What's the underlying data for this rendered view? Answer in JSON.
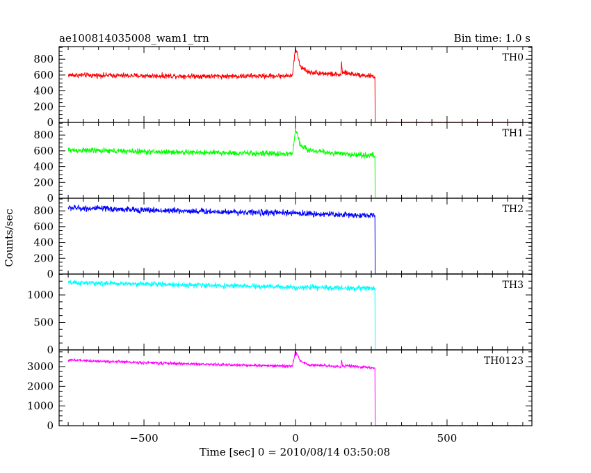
{
  "chart_data": {
    "type": "line",
    "title": "ae100814035008_wam1_trn",
    "subtitle": "Bin time: 1.0 s",
    "xlabel": "Time [sec] 0 = 2010/08/14 03:50:08",
    "ylabel": "Counts/sec",
    "xlim": [
      -780,
      780
    ],
    "x_ticks": [
      -500,
      0,
      500
    ],
    "grid": false,
    "data_start": -750,
    "data_end": 750,
    "cutoff": 262,
    "series": [
      {
        "name": "TH0",
        "color": "#ff0000",
        "ylim": [
          0,
          960
        ],
        "y_ticks": [
          0,
          200,
          400,
          600,
          800
        ],
        "level_start": 605,
        "level_end": 580,
        "noise": 32,
        "points": [
          [
            -750,
            600
          ],
          [
            -500,
            590
          ],
          [
            -250,
            585
          ],
          [
            -10,
            590
          ],
          [
            0,
            960
          ],
          [
            15,
            720
          ],
          [
            40,
            640
          ],
          [
            150,
            600
          ],
          [
            152,
            740
          ],
          [
            155,
            630
          ],
          [
            262,
            580
          ],
          [
            263,
            0
          ],
          [
            750,
            0
          ]
        ]
      },
      {
        "name": "TH1",
        "color": "#00ff00",
        "ylim": [
          0,
          960
        ],
        "y_ticks": [
          0,
          200,
          400,
          600,
          800
        ],
        "level_start": 610,
        "level_end": 540,
        "noise": 35,
        "points": [
          [
            -750,
            610
          ],
          [
            -500,
            590
          ],
          [
            -250,
            575
          ],
          [
            -10,
            560
          ],
          [
            0,
            880
          ],
          [
            15,
            690
          ],
          [
            40,
            610
          ],
          [
            150,
            560
          ],
          [
            262,
            540
          ],
          [
            263,
            0
          ],
          [
            750,
            0
          ]
        ]
      },
      {
        "name": "TH2",
        "color": "#0000ff",
        "ylim": [
          0,
          960
        ],
        "y_ticks": [
          0,
          200,
          400,
          600,
          800
        ],
        "level_start": 840,
        "level_end": 740,
        "noise": 38,
        "points": [
          [
            -750,
            840
          ],
          [
            -500,
            810
          ],
          [
            -250,
            790
          ],
          [
            0,
            770
          ],
          [
            262,
            740
          ],
          [
            263,
            0
          ],
          [
            750,
            0
          ]
        ]
      },
      {
        "name": "TH3",
        "color": "#00ffff",
        "ylim": [
          0,
          1380
        ],
        "y_ticks": [
          0,
          500,
          1000
        ],
        "level_start": 1220,
        "level_end": 1120,
        "noise": 45,
        "points": [
          [
            -750,
            1220
          ],
          [
            -500,
            1200
          ],
          [
            -250,
            1170
          ],
          [
            0,
            1140
          ],
          [
            262,
            1120
          ],
          [
            263,
            0
          ],
          [
            750,
            0
          ]
        ]
      },
      {
        "name": "TH0123",
        "color": "#ff00ff",
        "ylim": [
          0,
          3850
        ],
        "y_ticks": [
          0,
          1000,
          2000,
          3000
        ],
        "level_start": 3330,
        "level_end": 2930,
        "noise": 70,
        "points": [
          [
            -750,
            3330
          ],
          [
            -500,
            3200
          ],
          [
            -250,
            3100
          ],
          [
            -10,
            3020
          ],
          [
            0,
            3800
          ],
          [
            15,
            3300
          ],
          [
            40,
            3100
          ],
          [
            150,
            3000
          ],
          [
            152,
            3350
          ],
          [
            155,
            3050
          ],
          [
            262,
            2930
          ],
          [
            263,
            0
          ],
          [
            750,
            0
          ]
        ]
      }
    ]
  }
}
